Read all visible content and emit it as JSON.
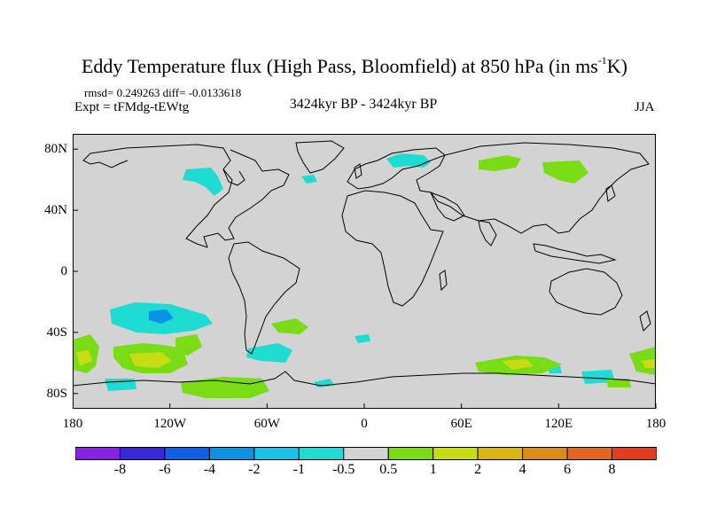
{
  "header": {
    "title_main": "Eddy Temperature flux (High Pass, Bloomfield) at 850 hPa (in ms",
    "title_sup": "-1",
    "title_end": "K)",
    "stats": "rmsd= 0.249263 diff= -0.0133618",
    "experiment": "Expt = tFMdg-tEWtg",
    "period": "3424kyr BP - 3424kyr BP",
    "season": "JJA"
  },
  "map": {
    "projection": "cylindrical equidistant",
    "background_color": "#d3d3d3",
    "coastline_color": "#000000",
    "lat_ticks": [
      "80N",
      "40N",
      "0",
      "40S",
      "80S"
    ],
    "lon_ticks": [
      "180",
      "120W",
      "60W",
      "0",
      "60E",
      "120E",
      "180"
    ]
  },
  "colorbar": {
    "labels": [
      "-8",
      "-6",
      "-4",
      "-2",
      "-1",
      "-0.5",
      "0.5",
      "1",
      "2",
      "4",
      "6",
      "8"
    ],
    "colors": [
      "#8a1fe6",
      "#3a28d8",
      "#0f60e6",
      "#0a93e6",
      "#19c2e6",
      "#1edcd2",
      "#d3d3d3",
      "#7adc14",
      "#c8dc14",
      "#dcb414",
      "#dc8c14",
      "#e6641e",
      "#e63c1e"
    ]
  }
}
